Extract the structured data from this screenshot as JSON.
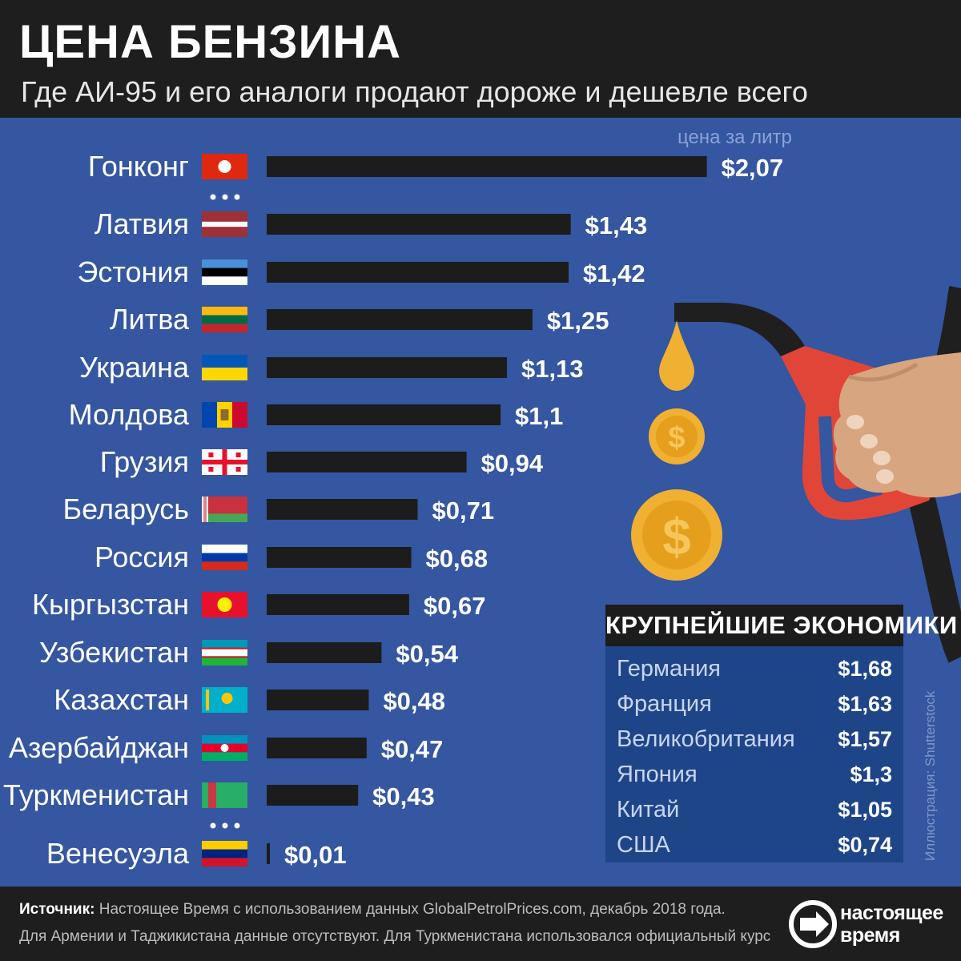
{
  "header": {
    "title": "ЦЕНА БЕНЗИНА",
    "subtitle": "Где АИ-95 и его аналоги продают дороже и дешевле всего"
  },
  "chart_data": {
    "type": "bar",
    "orientation": "horizontal",
    "value_label_prefix": "$",
    "unit_label": "цена за литр",
    "series": [
      {
        "categories": [
          "Гонконг",
          "Латвия",
          "Эстония",
          "Литва",
          "Украина",
          "Молдова",
          "Грузия",
          "Беларусь",
          "Россия",
          "Кыргызстан",
          "Узбекистан",
          "Казахстан",
          "Азербайджан",
          "Туркменистан",
          "Венесуэла"
        ],
        "values": [
          2.07,
          1.43,
          1.42,
          1.25,
          1.13,
          1.1,
          0.94,
          0.71,
          0.68,
          0.67,
          0.54,
          0.48,
          0.47,
          0.43,
          0.01
        ],
        "value_labels": [
          "$2,07",
          "$1,43",
          "$1,42",
          "$1,25",
          "$1,13",
          "$1,1",
          "$0,94",
          "$0,71",
          "$0,68",
          "$0,67",
          "$0,54",
          "$0,48",
          "$0,47",
          "$0,43",
          "$0,01"
        ],
        "flags": [
          "hong-kong-flag",
          "latvia-flag",
          "estonia-flag",
          "lithuania-flag",
          "ukraine-flag",
          "moldova-flag",
          "georgia-flag",
          "belarus-flag",
          "russia-flag",
          "kyrgyzstan-flag",
          "uzbekistan-flag",
          "kazakhstan-flag",
          "azerbaijan-flag",
          "turkmenistan-flag",
          "venezuela-flag"
        ]
      }
    ],
    "gaps_after": [
      "Гонконг",
      "Туркменистан"
    ],
    "bar_color": "#1c1c1c"
  },
  "largest_economies": {
    "title": "КРУПНЕЙШИЕ ЭКОНОМИКИ",
    "rows": [
      {
        "name": "Германия",
        "value": "$1,68"
      },
      {
        "name": "Франция",
        "value": "$1,63"
      },
      {
        "name": "Великобритания",
        "value": "$1,57"
      },
      {
        "name": "Япония",
        "value": "$1,3"
      },
      {
        "name": "Китай",
        "value": "$1,05"
      },
      {
        "name": "США",
        "value": "$0,74"
      }
    ]
  },
  "illustration_credit": "Иллюстрация: Shutterstock",
  "footer": {
    "source_label": "Источник:",
    "source_text": " Настоящее Время с использованием данных GlobalPetrolPrices.com, декабрь 2018 года.",
    "note": "Для Армении и Таджикистана данные отсутствуют. Для Туркменистана использовался официальный курс",
    "logo_line1": "настоящее",
    "logo_line2": "время"
  },
  "colors": {
    "background": "#3556a0",
    "header": "#1e1e1e",
    "coin": "#f0b032",
    "nozzle": "#e04538",
    "hand": "#d7a57f"
  }
}
